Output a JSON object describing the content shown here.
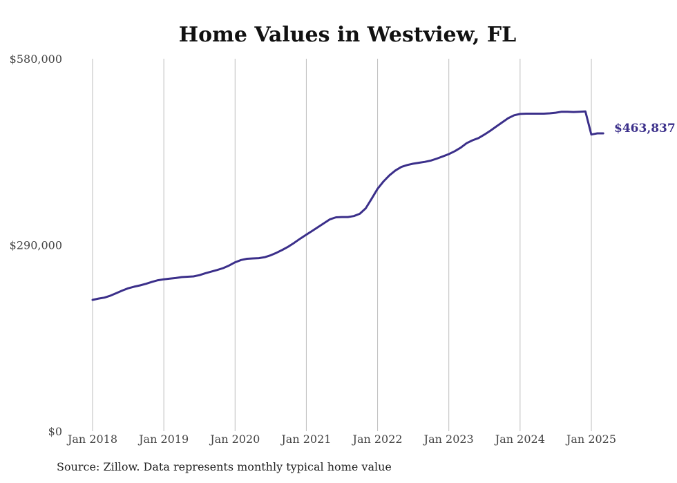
{
  "chart_data": {
    "type": "line",
    "title": "Home Values in Westview, FL",
    "xlabel": "",
    "ylabel": "",
    "ylim": [
      0,
      580000
    ],
    "y_ticks": [
      "$0",
      "$290,000",
      "$580,000"
    ],
    "x_ticks": [
      "Jan 2018",
      "Jan 2019",
      "Jan 2020",
      "Jan 2021",
      "Jan 2022",
      "Jan 2023",
      "Jan 2024",
      "Jan 2025"
    ],
    "grid": "vertical",
    "legend": "none",
    "line_color": "#3b2f8a",
    "end_label": "$463,837",
    "series": [
      {
        "x": [
          "2018-01",
          "2018-02",
          "2018-03",
          "2018-04",
          "2018-05",
          "2018-06",
          "2018-07",
          "2018-08",
          "2018-09",
          "2018-10",
          "2018-11",
          "2018-12",
          "2019-01",
          "2019-02",
          "2019-03",
          "2019-04",
          "2019-05",
          "2019-06",
          "2019-07",
          "2019-08",
          "2019-09",
          "2019-10",
          "2019-11",
          "2019-12",
          "2020-01",
          "2020-02",
          "2020-03",
          "2020-04",
          "2020-05",
          "2020-06",
          "2020-07",
          "2020-08",
          "2020-09",
          "2020-10",
          "2020-11",
          "2020-12",
          "2021-01",
          "2021-02",
          "2021-03",
          "2021-04",
          "2021-05",
          "2021-06",
          "2021-07",
          "2021-08",
          "2021-09",
          "2021-10",
          "2021-11",
          "2021-12",
          "2022-01",
          "2022-02",
          "2022-03",
          "2022-04",
          "2022-05",
          "2022-06",
          "2022-07",
          "2022-08",
          "2022-09",
          "2022-10",
          "2022-11",
          "2022-12",
          "2023-01",
          "2023-02",
          "2023-03",
          "2023-04",
          "2023-05",
          "2023-06",
          "2023-07",
          "2023-08",
          "2023-09",
          "2023-10",
          "2023-11",
          "2023-12",
          "2024-01",
          "2024-02",
          "2024-03",
          "2024-04",
          "2024-05",
          "2024-06",
          "2024-07",
          "2024-08",
          "2024-09",
          "2024-10",
          "2024-11",
          "2024-12",
          "2025-01",
          "2025-02",
          "2025-03"
        ],
        "values": [
          204500,
          206500,
          208000,
          211000,
          215000,
          219000,
          222500,
          225000,
          227000,
          229500,
          232500,
          235000,
          236500,
          237500,
          238500,
          240000,
          240500,
          241000,
          243000,
          246000,
          248500,
          251000,
          254000,
          258000,
          263000,
          266500,
          268500,
          269000,
          269500,
          271000,
          274000,
          278000,
          282500,
          287500,
          293500,
          300000,
          306000,
          312000,
          318000,
          324000,
          330000,
          333000,
          333500,
          333500,
          335000,
          338500,
          347000,
          362000,
          377500,
          389000,
          398500,
          406000,
          411500,
          414500,
          416500,
          418000,
          419500,
          421500,
          424500,
          428000,
          431500,
          436000,
          441500,
          448500,
          453000,
          456500,
          462000,
          468000,
          474500,
          481000,
          487500,
          492000,
          494000,
          494500,
          494500,
          494500,
          494500,
          495000,
          496000,
          497500,
          497500,
          497000,
          497500,
          498000,
          462000,
          463837,
          463837
        ]
      }
    ]
  },
  "footer": {
    "source": "Source: Zillow. Data represents monthly typical home value"
  }
}
